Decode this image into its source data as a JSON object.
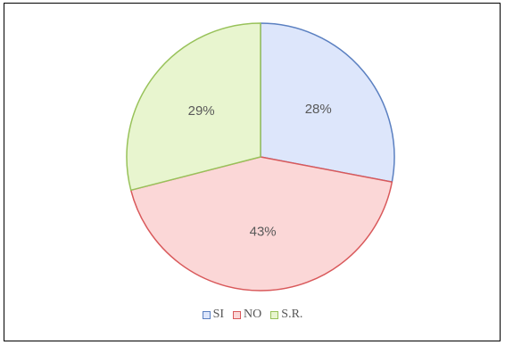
{
  "chart_data": {
    "type": "pie",
    "categories": [
      "SI",
      "NO",
      "S.R."
    ],
    "values": [
      28,
      43,
      29
    ],
    "data_labels": [
      "28%",
      "43%",
      "29%"
    ],
    "colors": {
      "fill": [
        "#dde6fb",
        "#fbd7d7",
        "#e8f5cf"
      ],
      "stroke": [
        "#5b80c1",
        "#d9595b",
        "#98c25a"
      ]
    },
    "start_angle": "12 o'clock",
    "direction": "clockwise",
    "legend_position": "bottom"
  }
}
